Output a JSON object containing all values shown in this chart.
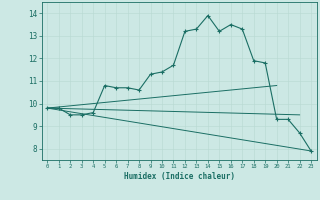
{
  "xlabel": "Humidex (Indice chaleur)",
  "bg_color": "#cce8e4",
  "line_color": "#1a6e64",
  "x_ticks": [
    0,
    1,
    2,
    3,
    4,
    5,
    6,
    7,
    8,
    9,
    10,
    11,
    12,
    13,
    14,
    15,
    16,
    17,
    18,
    19,
    20,
    21,
    22,
    23
  ],
  "ylim": [
    7.5,
    14.5
  ],
  "xlim": [
    -0.5,
    23.5
  ],
  "yticks": [
    8,
    9,
    10,
    11,
    12,
    13,
    14
  ],
  "main": {
    "x": [
      0,
      1,
      2,
      3,
      4,
      5,
      6,
      7,
      8,
      9,
      10,
      11,
      12,
      13,
      14,
      15,
      16,
      17,
      18,
      19,
      20,
      21,
      22,
      23
    ],
    "y": [
      9.8,
      9.8,
      9.5,
      9.5,
      9.6,
      10.8,
      10.7,
      10.7,
      10.6,
      11.3,
      11.4,
      11.7,
      13.2,
      13.3,
      13.9,
      13.2,
      13.5,
      13.3,
      11.9,
      11.8,
      9.3,
      9.3,
      8.7,
      7.9
    ]
  },
  "trend_upper": {
    "x": [
      0,
      20
    ],
    "y": [
      9.8,
      10.8
    ]
  },
  "trend_middle": {
    "x": [
      0,
      22
    ],
    "y": [
      9.8,
      9.5
    ]
  },
  "trend_lower": {
    "x": [
      0,
      23
    ],
    "y": [
      9.8,
      7.9
    ]
  },
  "grid_color": "#b8d8d2"
}
